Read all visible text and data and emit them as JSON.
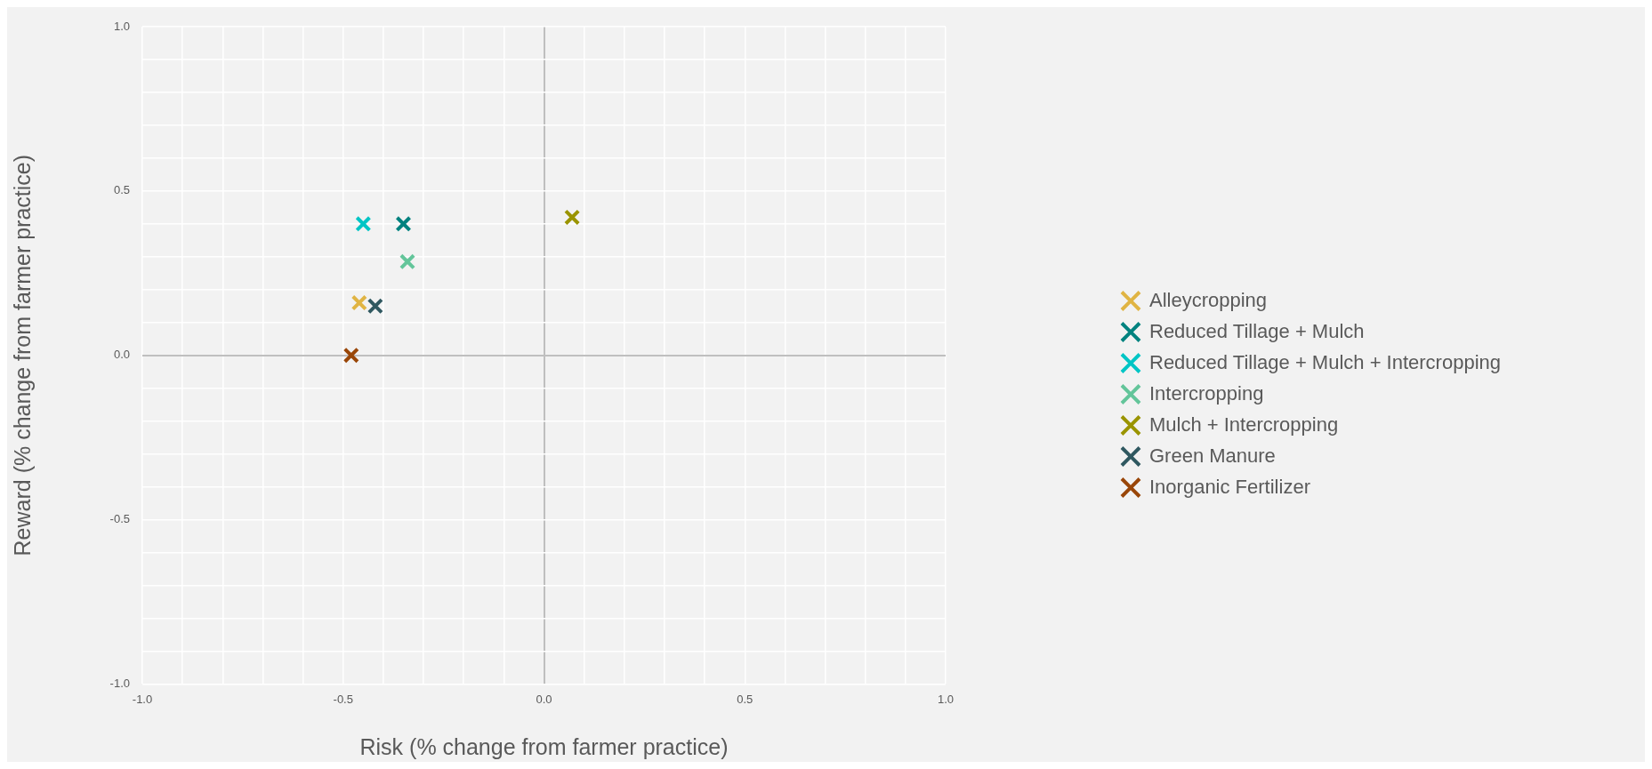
{
  "chart_data": {
    "type": "scatter",
    "xlabel": "Risk (% change from farmer practice)",
    "ylabel": "Reward (% change from farmer practice)",
    "marker": "cross",
    "grid": true,
    "legend": "right",
    "xlim": [
      -1,
      1
    ],
    "ylim": [
      -1,
      1
    ],
    "xticks": [
      {
        "value": -1,
        "label": "-1.0"
      },
      {
        "value": -0.9,
        "label": null
      },
      {
        "value": -0.8,
        "label": null
      },
      {
        "value": -0.7,
        "label": null
      },
      {
        "value": -0.6,
        "label": null
      },
      {
        "value": -0.5,
        "label": "-0.5"
      },
      {
        "value": -0.4,
        "label": null
      },
      {
        "value": -0.3,
        "label": null
      },
      {
        "value": -0.2,
        "label": null
      },
      {
        "value": -0.1,
        "label": null
      },
      {
        "value": 0,
        "label": "0.0"
      },
      {
        "value": 0.1,
        "label": null
      },
      {
        "value": 0.2,
        "label": null
      },
      {
        "value": 0.3,
        "label": null
      },
      {
        "value": 0.4,
        "label": null
      },
      {
        "value": 0.5,
        "label": "0.5"
      },
      {
        "value": 0.6,
        "label": null
      },
      {
        "value": 0.7,
        "label": null
      },
      {
        "value": 0.8,
        "label": null
      },
      {
        "value": 0.9,
        "label": null
      },
      {
        "value": 1,
        "label": "1.0"
      }
    ],
    "yticks": [
      {
        "value": -1,
        "label": "-1.0"
      },
      {
        "value": -0.9,
        "label": null
      },
      {
        "value": -0.8,
        "label": null
      },
      {
        "value": -0.7,
        "label": null
      },
      {
        "value": -0.6,
        "label": null
      },
      {
        "value": -0.5,
        "label": "-0.5"
      },
      {
        "value": -0.4,
        "label": null
      },
      {
        "value": -0.3,
        "label": null
      },
      {
        "value": -0.2,
        "label": null
      },
      {
        "value": -0.1,
        "label": null
      },
      {
        "value": 0,
        "label": "0.0"
      },
      {
        "value": 0.1,
        "label": null
      },
      {
        "value": 0.2,
        "label": null
      },
      {
        "value": 0.3,
        "label": null
      },
      {
        "value": 0.4,
        "label": null
      },
      {
        "value": 0.5,
        "label": "0.5"
      },
      {
        "value": 0.6,
        "label": null
      },
      {
        "value": 0.7,
        "label": null
      },
      {
        "value": 0.8,
        "label": null
      },
      {
        "value": 0.9,
        "label": null
      },
      {
        "value": 1,
        "label": "1.0"
      }
    ],
    "series": [
      {
        "name": "Alleycropping",
        "color": "#e0b443",
        "x": [
          -0.46
        ],
        "values": [
          0.16
        ]
      },
      {
        "name": "Reduced Tillage + Mulch",
        "color": "#00827f",
        "x": [
          -0.35
        ],
        "values": [
          0.4
        ]
      },
      {
        "name": "Reduced Tillage + Mulch + Intercropping",
        "color": "#00c5c5",
        "x": [
          -0.45
        ],
        "values": [
          0.4
        ]
      },
      {
        "name": "Intercropping",
        "color": "#63c59a",
        "x": [
          -0.34
        ],
        "values": [
          0.285
        ]
      },
      {
        "name": "Mulch + Intercropping",
        "color": "#9a9400",
        "x": [
          0.07
        ],
        "values": [
          0.42
        ]
      },
      {
        "name": "Green Manure",
        "color": "#2f5860",
        "x": [
          -0.42
        ],
        "values": [
          0.15
        ]
      },
      {
        "name": "Inorganic Fertilizer",
        "color": "#994608",
        "x": [
          -0.48
        ],
        "values": [
          0
        ]
      }
    ]
  }
}
